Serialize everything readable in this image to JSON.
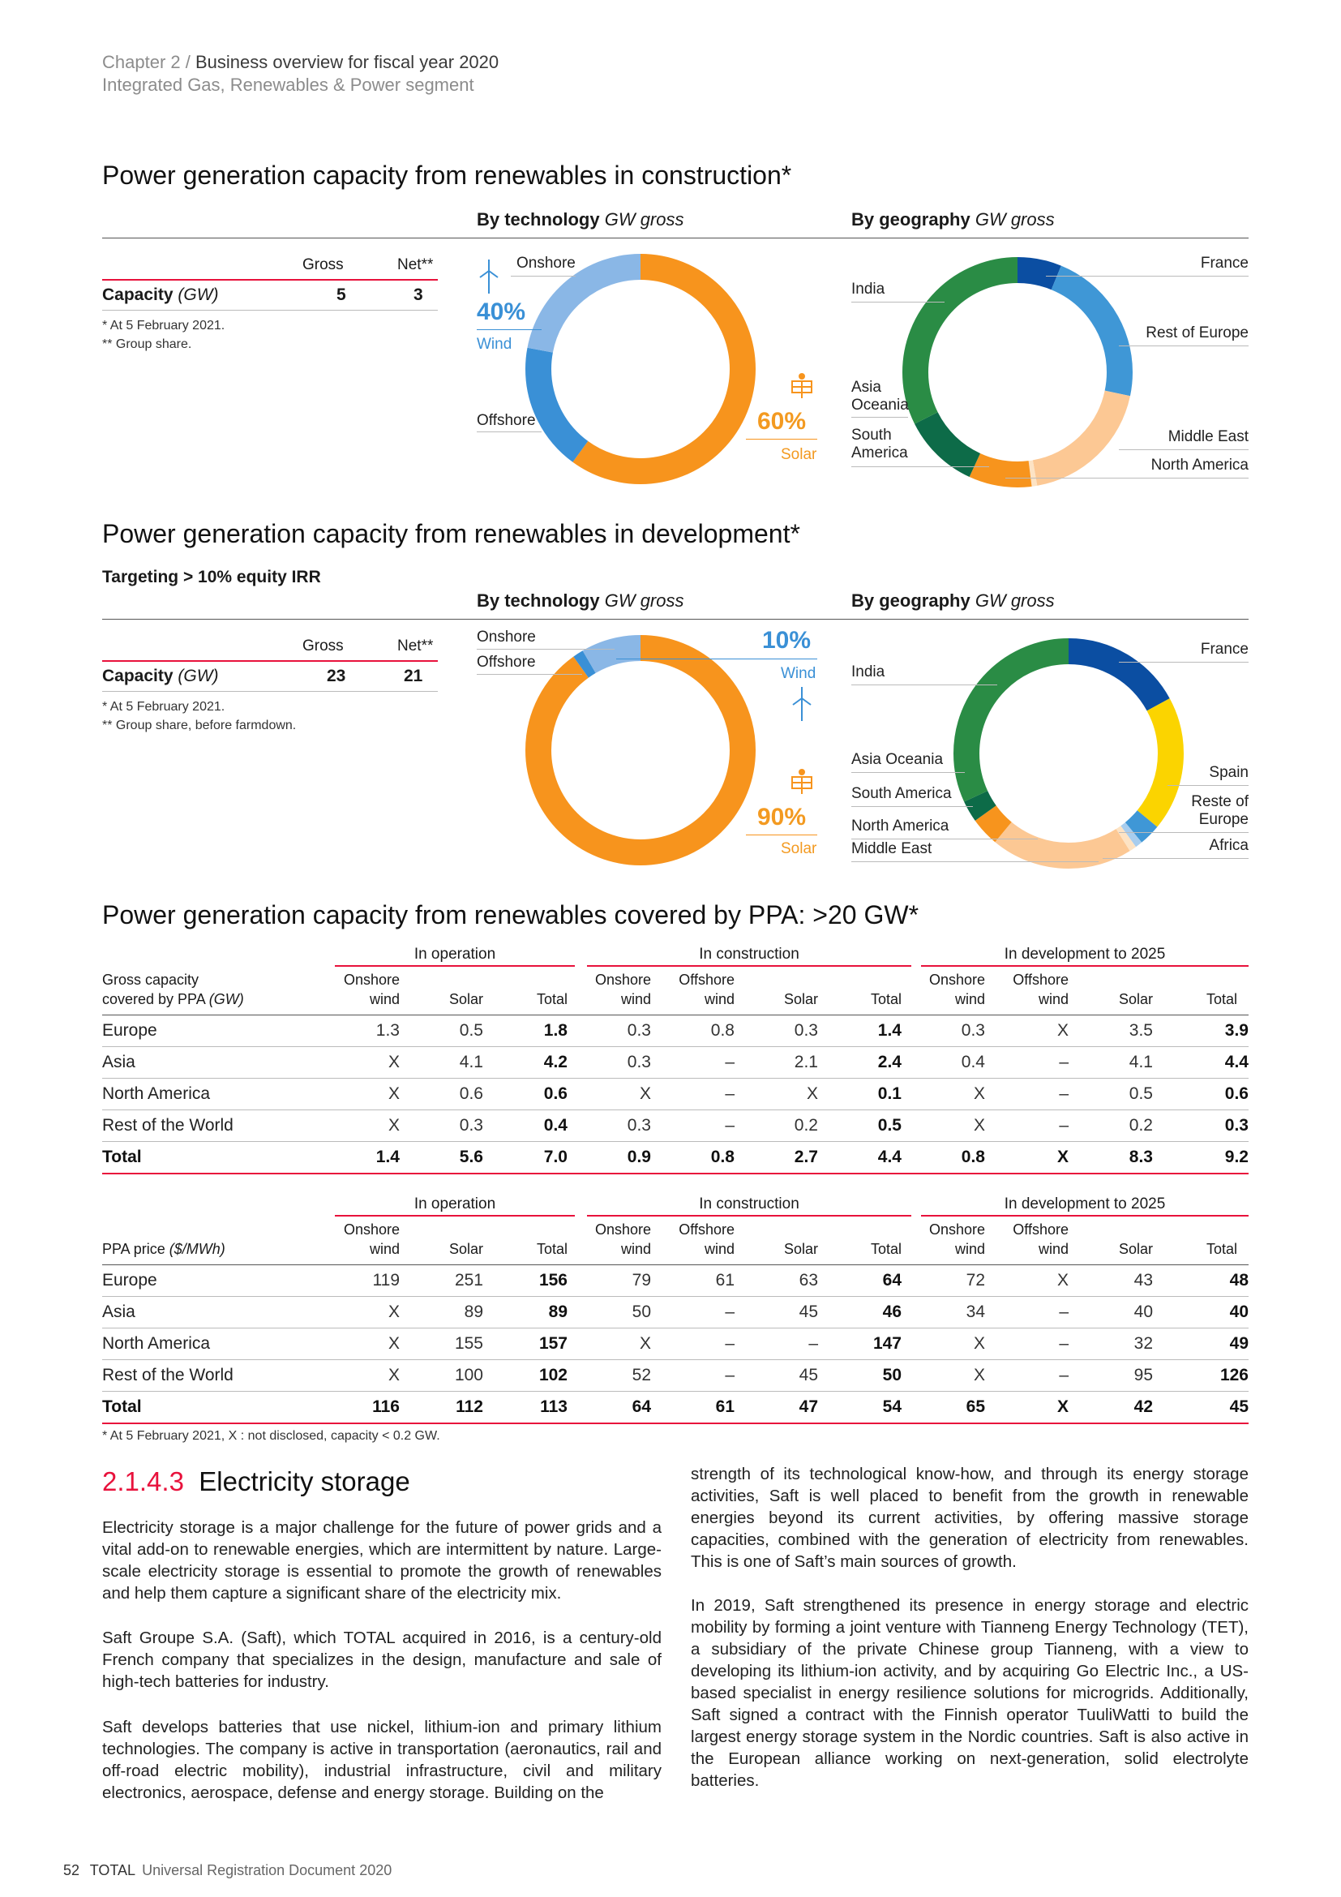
{
  "header": {
    "chapter": "Chapter 2",
    "chapter_title": "Business overview for fiscal year 2020",
    "segment": "Integrated Gas, Renewables & Power segment"
  },
  "construction": {
    "title": "Power generation capacity from renewables in construction*",
    "by_tech": "By technology",
    "by_geo": "By geography",
    "unit": "GW gross",
    "col_gross": "Gross",
    "col_net": "Net**",
    "row_label": "Capacity",
    "row_unit": "(GW)",
    "gross": "5",
    "net": "3",
    "note1": "* At 5 February 2021.",
    "note2": "** Group share.",
    "tech": {
      "onshore": "Onshore",
      "offshore": "Offshore",
      "wind_pct": "40%",
      "wind": "Wind",
      "solar_pct": "60%",
      "solar": "Solar"
    },
    "geo": {
      "india": "India",
      "asia_oceania_1": "Asia",
      "asia_oceania_2": "Oceania",
      "south_america_1": "South",
      "south_america_2": "America",
      "france": "France",
      "rest_of_europe": "Rest of Europe",
      "middle_east": "Middle East",
      "north_america": "North America"
    }
  },
  "development": {
    "title": "Power generation capacity from renewables in development*",
    "target": "Targeting > 10% equity IRR",
    "by_tech": "By technology",
    "by_geo": "By geography",
    "unit": "GW gross",
    "col_gross": "Gross",
    "col_net": "Net**",
    "row_label": "Capacity",
    "row_unit": "(GW)",
    "gross": "23",
    "net": "21",
    "note1": "* At 5 February 2021.",
    "note2": "** Group share, before farmdown.",
    "tech": {
      "onshore": "Onshore",
      "offshore": "Offshore",
      "wind_pct": "10%",
      "wind": "Wind",
      "solar_pct": "90%",
      "solar": "Solar"
    },
    "geo": {
      "india": "India",
      "asia_oceania": "Asia Oceania",
      "south_america": "South America",
      "north_america": "North America",
      "middle_east": "Middle East",
      "france": "France",
      "spain": "Spain",
      "reste_1": "Reste of",
      "reste_2": "Europe",
      "africa": "Africa"
    }
  },
  "ppa": {
    "title": "Power generation capacity from renewables covered by PPA: >20 GW*",
    "groups": [
      "In operation",
      "In construction",
      "In development to 2025"
    ],
    "t1_label1": "Gross capacity",
    "t1_label2": "covered by PPA",
    "t1_unit": "(GW)",
    "t2_label": "PPA price",
    "t2_unit": "($/MWh)",
    "onshore": "Onshore",
    "offshore": "Offshore",
    "wind": "wind",
    "solar": "Solar",
    "total": "Total",
    "capacity_rows": [
      [
        "Europe",
        "1.3",
        "0.5",
        "1.8",
        "0.3",
        "0.8",
        "0.3",
        "1.4",
        "0.3",
        "X",
        "3.5",
        "3.9"
      ],
      [
        "Asia",
        "X",
        "4.1",
        "4.2",
        "0.3",
        "–",
        "2.1",
        "2.4",
        "0.4",
        "–",
        "4.1",
        "4.4"
      ],
      [
        "North America",
        "X",
        "0.6",
        "0.6",
        "X",
        "–",
        "X",
        "0.1",
        "X",
        "–",
        "0.5",
        "0.6"
      ],
      [
        "Rest of the World",
        "X",
        "0.3",
        "0.4",
        "0.3",
        "–",
        "0.2",
        "0.5",
        "X",
        "–",
        "0.2",
        "0.3"
      ],
      [
        "Total",
        "1.4",
        "5.6",
        "7.0",
        "0.9",
        "0.8",
        "2.7",
        "4.4",
        "0.8",
        "X",
        "8.3",
        "9.2"
      ]
    ],
    "price_rows": [
      [
        "Europe",
        "119",
        "251",
        "156",
        "79",
        "61",
        "63",
        "64",
        "72",
        "X",
        "43",
        "48"
      ],
      [
        "Asia",
        "X",
        "89",
        "89",
        "50",
        "–",
        "45",
        "46",
        "34",
        "–",
        "40",
        "40"
      ],
      [
        "North America",
        "X",
        "155",
        "157",
        "X",
        "–",
        "–",
        "147",
        "X",
        "–",
        "32",
        "49"
      ],
      [
        "Rest of the World",
        "X",
        "100",
        "102",
        "52",
        "–",
        "45",
        "50",
        "X",
        "–",
        "95",
        "126"
      ],
      [
        "Total",
        "116",
        "112",
        "113",
        "64",
        "61",
        "47",
        "54",
        "65",
        "X",
        "42",
        "45"
      ]
    ],
    "note": "* At 5 February 2021, X : not disclosed, capacity < 0.2 GW."
  },
  "section": {
    "number": "2.1.4.3",
    "title": "Electricity storage",
    "p1": "Electricity storage is a major challenge for the future of power grids and a vital add-on to renewable energies, which are intermittent by nature. Large-scale electricity storage is essential to promote the growth of renewables and help them capture a significant share of the electricity mix.",
    "p2": "Saft Groupe S.A. (Saft), which TOTAL acquired in 2016, is a century-old French company that specializes in the design, manufacture and sale of high-tech batteries for industry.",
    "p3": "Saft develops batteries that use nickel, lithium-ion and primary lithium technologies. The company is active in transportation (aeronautics, rail and off-road electric mobility), industrial infrastructure, civil and military electronics, aerospace, defense and energy storage. Building on the",
    "p4": "strength of its technological know-how, and through its energy storage activities, Saft is well placed to benefit from the growth in renewable energies beyond its current activities, by offering massive storage capacities, combined with the generation of electricity from renewables. This is one of Saft’s main sources of growth.",
    "p5": "In 2019, Saft strengthened its presence in energy storage and electric mobility by forming a joint venture with Tianneng Energy Technology (TET), a subsidiary of the private Chinese group Tianneng, with a view to developing its lithium-ion activity, and by acquiring Go Electric Inc., a US-based specialist in energy resilience solutions for microgrids. Additionally, Saft signed a contract with the Finnish operator TuuliWatti to build the largest energy storage system in the Nordic countries. Saft is also active in the European alliance working on next-generation, solid electrolyte batteries."
  },
  "footer": {
    "page": "52",
    "brand": "TOTAL",
    "doc": "Universal Registration Document 2020"
  },
  "colors": {
    "wind": "#3a90d6",
    "solar": "#f7941d",
    "accent": "#e8123c"
  }
}
